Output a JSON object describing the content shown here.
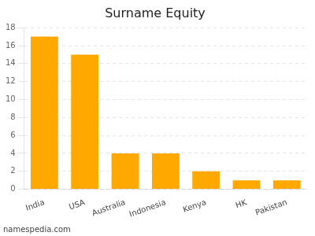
{
  "chart_data": {
    "type": "bar",
    "title": "Surname Equity",
    "categories": [
      "India",
      "USA",
      "Australia",
      "Indonesia",
      "Kenya",
      "HK",
      "Pakistan"
    ],
    "values": [
      17.0,
      15.0,
      4.0,
      4.0,
      2.0,
      1.0,
      1.0
    ],
    "color": "#FFA800",
    "ylim": [
      0,
      18
    ],
    "yticks": [
      0,
      2,
      4,
      6,
      8,
      10,
      12,
      14,
      16,
      18
    ],
    "grid": true,
    "annotations": [
      "namespedia.com"
    ]
  }
}
